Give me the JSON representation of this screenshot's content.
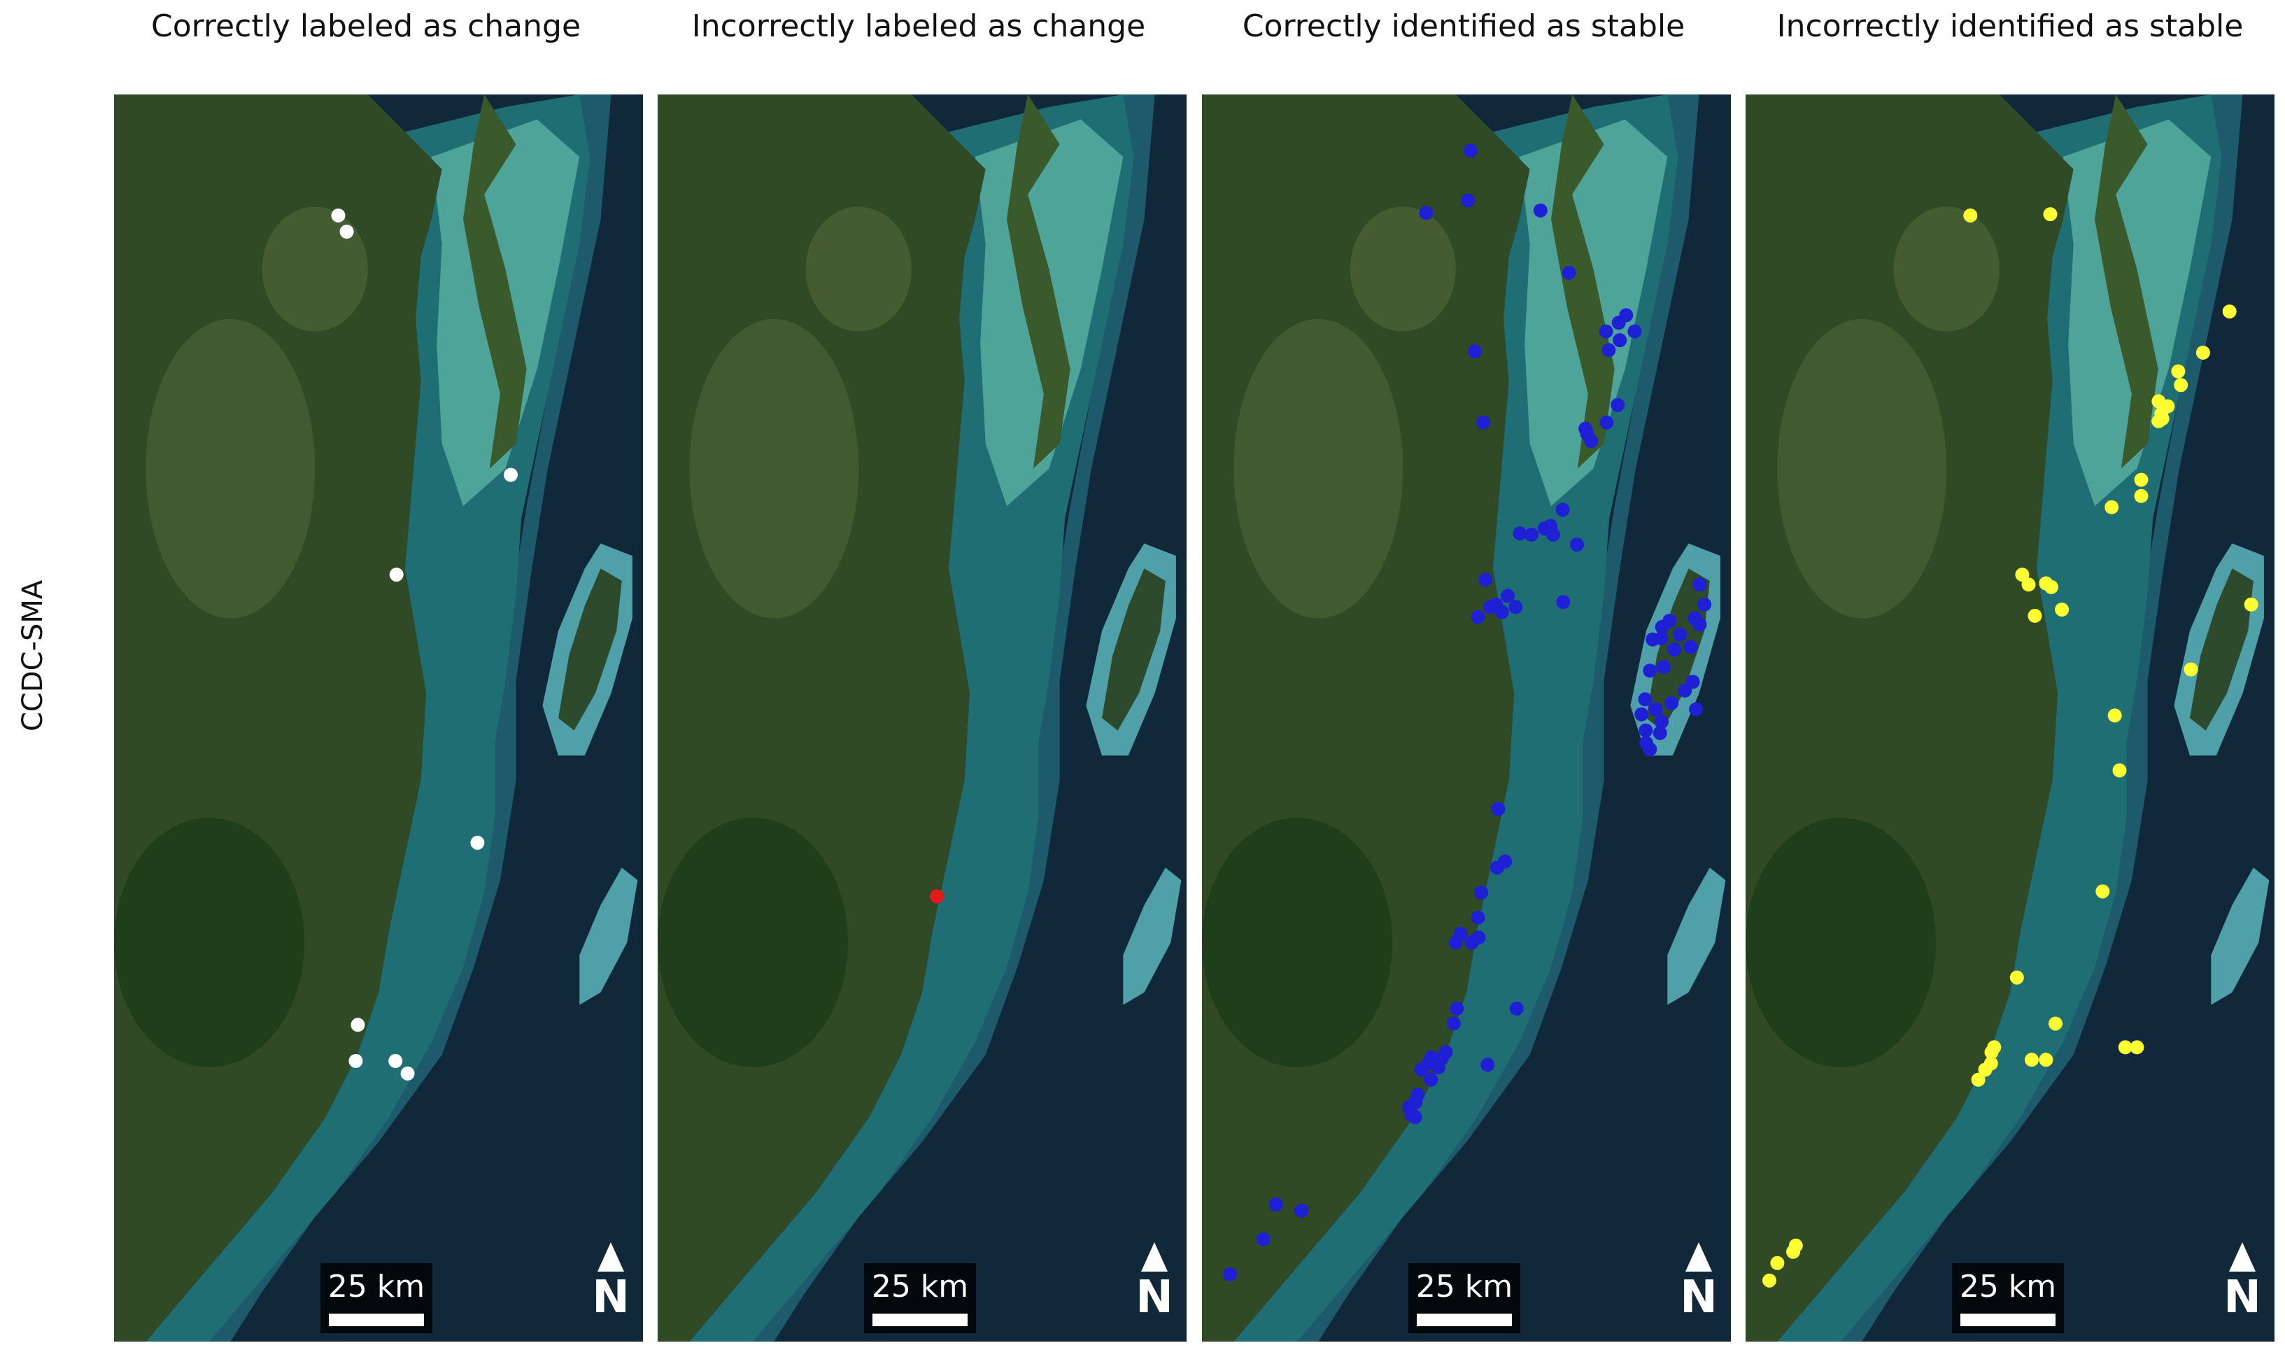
{
  "figure": {
    "row_label": "CCDC-SMA",
    "panels": [
      {
        "title": "Correctly labeled as change",
        "point_color": "#ffffff",
        "points": [
          [
            0.424,
            0.097
          ],
          [
            0.44,
            0.11
          ],
          [
            0.75,
            0.305
          ],
          [
            0.534,
            0.385
          ],
          [
            0.687,
            0.6
          ],
          [
            0.461,
            0.746
          ],
          [
            0.457,
            0.775
          ],
          [
            0.532,
            0.775
          ],
          [
            0.555,
            0.785
          ]
        ]
      },
      {
        "title": "Incorrectly labeled as change",
        "point_color": "#e41a1c",
        "points": [
          [
            0.528,
            0.643
          ]
        ]
      },
      {
        "title": "Correctly identified as stable",
        "point_color": "#1f1fd6",
        "points": [
          [
            0.508,
            0.045
          ],
          [
            0.503,
            0.085
          ],
          [
            0.424,
            0.095
          ],
          [
            0.64,
            0.093
          ],
          [
            0.694,
            0.143
          ],
          [
            0.802,
            0.177
          ],
          [
            0.788,
            0.183
          ],
          [
            0.764,
            0.19
          ],
          [
            0.79,
            0.197
          ],
          [
            0.818,
            0.19
          ],
          [
            0.769,
            0.205
          ],
          [
            0.516,
            0.206
          ],
          [
            0.786,
            0.249
          ],
          [
            0.765,
            0.263
          ],
          [
            0.725,
            0.268
          ],
          [
            0.532,
            0.263
          ],
          [
            0.736,
            0.278
          ],
          [
            0.728,
            0.272
          ],
          [
            0.682,
            0.333
          ],
          [
            0.648,
            0.348
          ],
          [
            0.659,
            0.346
          ],
          [
            0.601,
            0.352
          ],
          [
            0.623,
            0.353
          ],
          [
            0.664,
            0.353
          ],
          [
            0.709,
            0.361
          ],
          [
            0.536,
            0.389
          ],
          [
            0.578,
            0.402
          ],
          [
            0.545,
            0.411
          ],
          [
            0.556,
            0.409
          ],
          [
            0.593,
            0.411
          ],
          [
            0.683,
            0.407
          ],
          [
            0.567,
            0.415
          ],
          [
            0.522,
            0.419
          ],
          [
            0.941,
            0.393
          ],
          [
            0.95,
            0.409
          ],
          [
            0.932,
            0.42
          ],
          [
            0.884,
            0.422
          ],
          [
            0.941,
            0.425
          ],
          [
            0.87,
            0.427
          ],
          [
            0.904,
            0.433
          ],
          [
            0.868,
            0.436
          ],
          [
            0.852,
            0.437
          ],
          [
            0.924,
            0.443
          ],
          [
            0.893,
            0.445
          ],
          [
            0.873,
            0.459
          ],
          [
            0.847,
            0.462
          ],
          [
            0.928,
            0.471
          ],
          [
            0.913,
            0.478
          ],
          [
            0.888,
            0.488
          ],
          [
            0.838,
            0.485
          ],
          [
            0.858,
            0.493
          ],
          [
            0.934,
            0.493
          ],
          [
            0.831,
            0.497
          ],
          [
            0.869,
            0.503
          ],
          [
            0.839,
            0.51
          ],
          [
            0.866,
            0.512
          ],
          [
            0.84,
            0.52
          ],
          [
            0.847,
            0.525
          ],
          [
            0.56,
            0.573
          ],
          [
            0.573,
            0.615
          ],
          [
            0.558,
            0.62
          ],
          [
            0.528,
            0.64
          ],
          [
            0.522,
            0.66
          ],
          [
            0.489,
            0.673
          ],
          [
            0.523,
            0.676
          ],
          [
            0.48,
            0.68
          ],
          [
            0.51,
            0.68
          ],
          [
            0.482,
            0.733
          ],
          [
            0.476,
            0.745
          ],
          [
            0.595,
            0.733
          ],
          [
            0.461,
            0.768
          ],
          [
            0.434,
            0.772
          ],
          [
            0.453,
            0.773
          ],
          [
            0.428,
            0.777
          ],
          [
            0.415,
            0.782
          ],
          [
            0.447,
            0.78
          ],
          [
            0.54,
            0.778
          ],
          [
            0.433,
            0.79
          ],
          [
            0.408,
            0.802
          ],
          [
            0.404,
            0.808
          ],
          [
            0.392,
            0.812
          ],
          [
            0.396,
            0.818
          ],
          [
            0.403,
            0.82
          ],
          [
            0.14,
            0.89
          ],
          [
            0.188,
            0.895
          ],
          [
            0.116,
            0.918
          ],
          [
            0.053,
            0.946
          ]
        ]
      },
      {
        "title": "Incorrectly identified as stable",
        "point_color": "#ffff33",
        "points": [
          [
            0.425,
            0.097
          ],
          [
            0.576,
            0.096
          ],
          [
            0.915,
            0.174
          ],
          [
            0.865,
            0.207
          ],
          [
            0.818,
            0.222
          ],
          [
            0.823,
            0.233
          ],
          [
            0.781,
            0.246
          ],
          [
            0.798,
            0.25
          ],
          [
            0.786,
            0.256
          ],
          [
            0.788,
            0.26
          ],
          [
            0.781,
            0.262
          ],
          [
            0.748,
            0.309
          ],
          [
            0.748,
            0.322
          ],
          [
            0.692,
            0.331
          ],
          [
            0.523,
            0.385
          ],
          [
            0.535,
            0.393
          ],
          [
            0.568,
            0.392
          ],
          [
            0.578,
            0.395
          ],
          [
            0.598,
            0.413
          ],
          [
            0.547,
            0.418
          ],
          [
            0.956,
            0.409
          ],
          [
            0.842,
            0.461
          ],
          [
            0.698,
            0.498
          ],
          [
            0.707,
            0.542
          ],
          [
            0.675,
            0.639
          ],
          [
            0.513,
            0.708
          ],
          [
            0.586,
            0.745
          ],
          [
            0.47,
            0.764
          ],
          [
            0.465,
            0.768
          ],
          [
            0.464,
            0.777
          ],
          [
            0.453,
            0.782
          ],
          [
            0.541,
            0.774
          ],
          [
            0.568,
            0.774
          ],
          [
            0.44,
            0.79
          ],
          [
            0.718,
            0.764
          ],
          [
            0.74,
            0.764
          ],
          [
            0.095,
            0.923
          ],
          [
            0.09,
            0.928
          ],
          [
            0.06,
            0.937
          ],
          [
            0.045,
            0.951
          ]
        ]
      }
    ],
    "scale_bar": {
      "label": "25 km"
    },
    "north_arrow": {
      "label": "N"
    }
  }
}
